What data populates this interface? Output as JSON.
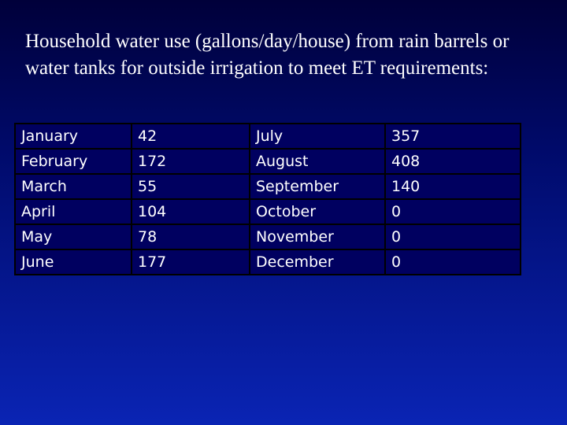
{
  "title": "Household water use (gallons/day/house) from rain barrels or water tanks for outside irrigation to meet ET requirements:",
  "rows": [
    {
      "month_a": "January",
      "value_a": "42",
      "month_b": "July",
      "value_b": "357"
    },
    {
      "month_a": "February",
      "value_a": "172",
      "month_b": "August",
      "value_b": "408"
    },
    {
      "month_a": "March",
      "value_a": "55",
      "month_b": "September",
      "value_b": "140"
    },
    {
      "month_a": "April",
      "value_a": "104",
      "month_b": "October",
      "value_b": "0"
    },
    {
      "month_a": "May",
      "value_a": "78",
      "month_b": "November",
      "value_b": "0"
    },
    {
      "month_a": "June",
      "value_a": "177",
      "month_b": "December",
      "value_b": "0"
    }
  ]
}
